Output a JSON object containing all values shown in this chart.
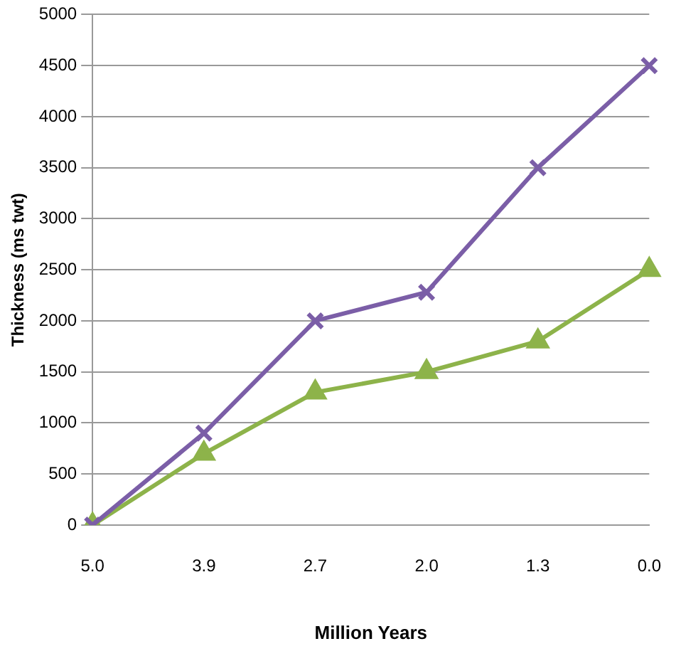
{
  "chart_data": {
    "type": "line",
    "xlabel": "Million Years",
    "ylabel": "Thickness (ms twt)",
    "categories": [
      "5.0",
      "3.9",
      "2.7",
      "2.0",
      "1.3",
      "0.0"
    ],
    "series": [
      {
        "color": "#7b5ea7",
        "marker": "cross",
        "values": [
          0,
          900,
          2000,
          2280,
          3500,
          4500
        ]
      },
      {
        "color": "#8db34a",
        "marker": "triangle",
        "values": [
          0,
          700,
          1300,
          1500,
          1800,
          2500
        ]
      }
    ],
    "ylim": [
      0,
      5000
    ],
    "yticks": [
      0,
      500,
      1000,
      1500,
      2000,
      2500,
      3000,
      3500,
      4000,
      4500,
      5000
    ],
    "grid": "y",
    "legend": false,
    "line_style": "solid"
  }
}
